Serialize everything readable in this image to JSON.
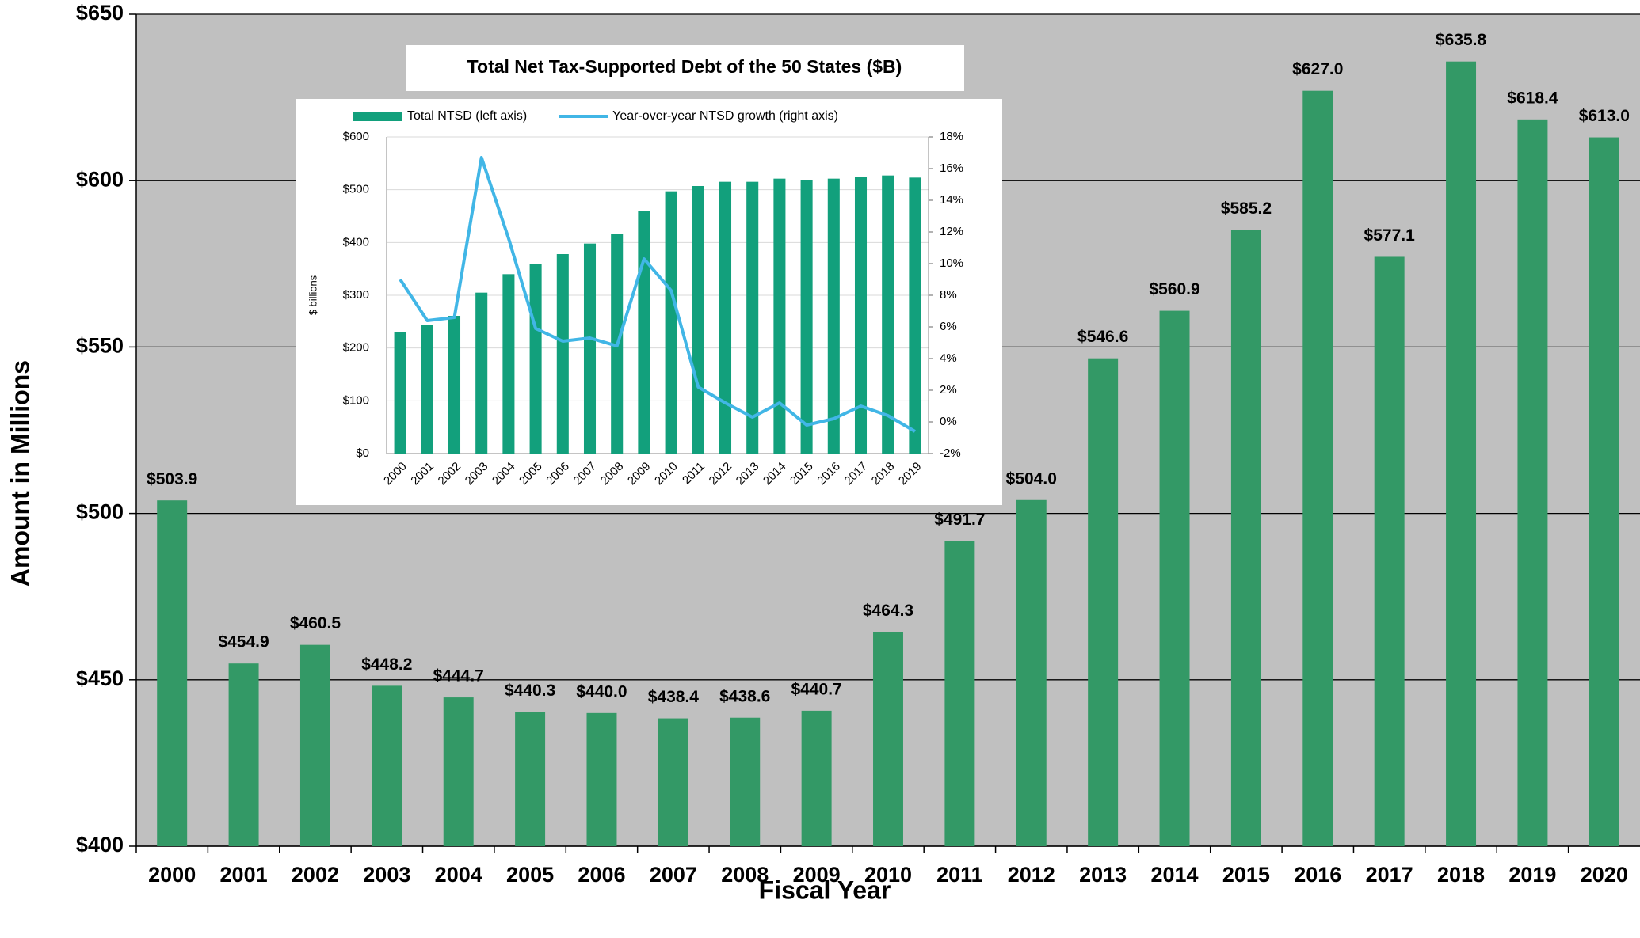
{
  "chart_data": [
    {
      "type": "bar",
      "xlabel": "Fiscal Year",
      "ylabel": "Amount in Millions",
      "categories": [
        "2000",
        "2001",
        "2002",
        "2003",
        "2004",
        "2005",
        "2006",
        "2007",
        "2008",
        "2009",
        "2010",
        "2011",
        "2012",
        "2013",
        "2014",
        "2015",
        "2016",
        "2017",
        "2018",
        "2019",
        "2020"
      ],
      "values": [
        503.9,
        454.9,
        460.5,
        448.2,
        444.7,
        440.3,
        440.0,
        438.4,
        438.6,
        440.7,
        464.3,
        491.7,
        504.0,
        546.6,
        560.9,
        585.2,
        627.0,
        577.1,
        635.8,
        618.4,
        613.0
      ],
      "value_labels": [
        "$503.9",
        "$454.9",
        "$460.5",
        "$448.2",
        "$444.7",
        "$440.3",
        "$440.0",
        "$438.4",
        "$438.6",
        "$440.7",
        "$464.3",
        "$491.7",
        "$504.0",
        "$546.6",
        "$560.9",
        "$585.2",
        "$627.0",
        "$577.1",
        "$635.8",
        "$618.4",
        "$613.0"
      ],
      "color": "#339966",
      "ylim": [
        400,
        650
      ],
      "yticks": [
        {
          "value": 400,
          "label": "$400"
        },
        {
          "value": 450,
          "label": "$450"
        },
        {
          "value": 500,
          "label": "$500"
        },
        {
          "value": 550,
          "label": "$550"
        },
        {
          "value": 600,
          "label": "$600"
        },
        {
          "value": 650,
          "label": "$650"
        }
      ],
      "grid": true
    },
    {
      "type": "combo",
      "title": "Total Net Tax-Supported Debt of the 50 States ($B)",
      "ylabel": "$ billions",
      "categories": [
        "2000",
        "2001",
        "2002",
        "2003",
        "2004",
        "2005",
        "2006",
        "2007",
        "2008",
        "2009",
        "2010",
        "2011",
        "2012",
        "2013",
        "2014",
        "2015",
        "2016",
        "2017",
        "2018",
        "2019"
      ],
      "series": [
        {
          "name": "Total NTSD (left axis)",
          "color": "#12a07c",
          "type": "bar",
          "values": [
            230,
            244,
            261,
            305,
            340,
            360,
            378,
            398,
            416,
            459,
            497,
            507,
            515,
            515,
            521,
            519,
            521,
            525,
            527,
            523
          ]
        },
        {
          "name": "Year-over-year NTSD growth (right axis)",
          "color": "#41b6e6",
          "type": "line",
          "axis": "y2",
          "values": [
            9.0,
            6.4,
            6.6,
            16.7,
            11.6,
            5.9,
            5.1,
            5.3,
            4.8,
            10.3,
            8.3,
            2.2,
            1.2,
            0.3,
            1.2,
            -0.2,
            0.2,
            1.0,
            0.4,
            -0.6
          ]
        }
      ],
      "ylim": [
        0,
        600
      ],
      "yticks": [
        {
          "value": 0,
          "label": "$0"
        },
        {
          "value": 100,
          "label": "$100"
        },
        {
          "value": 200,
          "label": "$200"
        },
        {
          "value": 300,
          "label": "$300"
        },
        {
          "value": 400,
          "label": "$400"
        },
        {
          "value": 500,
          "label": "$500"
        },
        {
          "value": 600,
          "label": "$600"
        }
      ],
      "y2lim": [
        -2,
        18
      ],
      "y2ticks": [
        {
          "value": -2,
          "label": "-2%"
        },
        {
          "value": 0,
          "label": "0%"
        },
        {
          "value": 2,
          "label": "2%"
        },
        {
          "value": 4,
          "label": "4%"
        },
        {
          "value": 6,
          "label": "6%"
        },
        {
          "value": 8,
          "label": "8%"
        },
        {
          "value": 10,
          "label": "10%"
        },
        {
          "value": 12,
          "label": "12%"
        },
        {
          "value": 14,
          "label": "14%"
        },
        {
          "value": 16,
          "label": "16%"
        },
        {
          "value": 18,
          "label": "18%"
        }
      ],
      "grid": true,
      "legend": "top"
    }
  ]
}
